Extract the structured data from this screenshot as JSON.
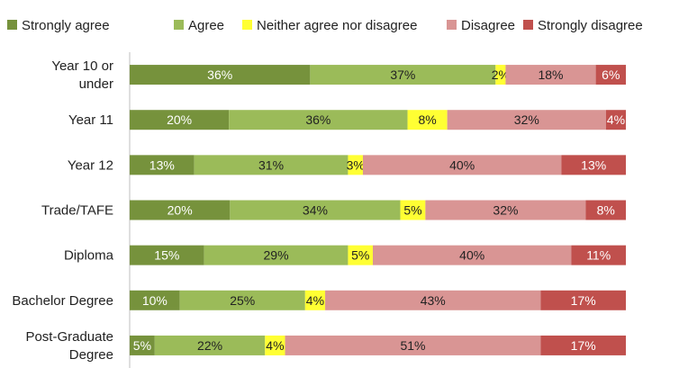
{
  "chart_data": {
    "type": "bar",
    "orientation": "horizontal",
    "stacked": true,
    "percent": true,
    "title": "",
    "xlabel": "",
    "ylabel": "",
    "xlim": [
      0,
      100
    ],
    "grid": false,
    "legend_position": "top",
    "categories": [
      [
        "Year 10 or",
        "under"
      ],
      [
        "Year 11"
      ],
      [
        "Year 12"
      ],
      [
        "Trade/TAFE"
      ],
      [
        "Diploma"
      ],
      [
        "Bachelor Degree"
      ],
      [
        "Post-Graduate",
        "Degree"
      ]
    ],
    "series": [
      {
        "name": "Strongly agree",
        "color": "#76923c",
        "label_color": "#ffffff",
        "values": [
          36,
          20,
          13,
          20,
          15,
          10,
          5
        ]
      },
      {
        "name": "Agree",
        "color": "#9bbb59",
        "label_color": "#222222",
        "values": [
          37,
          36,
          31,
          34,
          29,
          25,
          22
        ]
      },
      {
        "name": "Neither agree nor disagree",
        "color": "#ffff33",
        "label_color": "#222222",
        "values": [
          2,
          8,
          3,
          5,
          5,
          4,
          4
        ]
      },
      {
        "name": "Disagree",
        "color": "#d99594",
        "label_color": "#222222",
        "values": [
          18,
          32,
          40,
          32,
          40,
          43,
          51
        ]
      },
      {
        "name": "Strongly disagree",
        "color": "#c0504d",
        "label_color": "#ffffff",
        "values": [
          6,
          4,
          13,
          8,
          11,
          17,
          17
        ]
      }
    ]
  }
}
